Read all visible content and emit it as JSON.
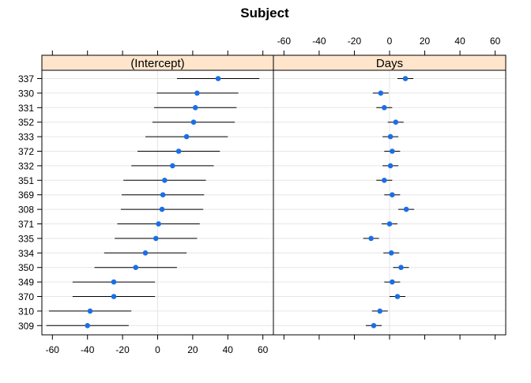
{
  "chart_data": {
    "type": "scatter",
    "title": "Subject",
    "subtitle": "",
    "xlabel": "",
    "ylabel": "",
    "categories": [
      "337",
      "330",
      "331",
      "352",
      "333",
      "372",
      "332",
      "351",
      "369",
      "308",
      "371",
      "335",
      "334",
      "350",
      "349",
      "370",
      "310",
      "309"
    ],
    "xlim": [
      -66,
      66
    ],
    "xticks": [
      -60,
      -40,
      -20,
      0,
      20,
      40,
      60
    ],
    "tick_labels": [
      "-60",
      "-40",
      "-20",
      "0",
      "20",
      "40",
      "60"
    ],
    "grid": true,
    "colors": {
      "point": "#1a6fe6",
      "strip": "#ffe5cc",
      "interval": "#000000",
      "grid": "#e6e6e6"
    },
    "panels": [
      {
        "strip_label": "(Intercept)",
        "points": [
          {
            "category": "337",
            "value": 34.5,
            "lower": 11.0,
            "upper": 58.0
          },
          {
            "category": "330",
            "value": 22.5,
            "lower": -0.5,
            "upper": 46.0
          },
          {
            "category": "331",
            "value": 21.5,
            "lower": -2.0,
            "upper": 45.0
          },
          {
            "category": "352",
            "value": 20.5,
            "lower": -3.0,
            "upper": 44.0
          },
          {
            "category": "333",
            "value": 16.5,
            "lower": -7.0,
            "upper": 40.0
          },
          {
            "category": "372",
            "value": 12.0,
            "lower": -11.5,
            "upper": 35.5
          },
          {
            "category": "332",
            "value": 8.5,
            "lower": -15.0,
            "upper": 32.0
          },
          {
            "category": "351",
            "value": 4.0,
            "lower": -19.5,
            "upper": 27.5
          },
          {
            "category": "369",
            "value": 3.0,
            "lower": -20.5,
            "upper": 26.5
          },
          {
            "category": "308",
            "value": 2.5,
            "lower": -21.0,
            "upper": 26.0
          },
          {
            "category": "371",
            "value": 0.5,
            "lower": -23.0,
            "upper": 24.0
          },
          {
            "category": "335",
            "value": -1.0,
            "lower": -24.5,
            "upper": 22.5
          },
          {
            "category": "334",
            "value": -7.0,
            "lower": -30.5,
            "upper": 16.5
          },
          {
            "category": "350",
            "value": -12.5,
            "lower": -36.0,
            "upper": 11.0
          },
          {
            "category": "349",
            "value": -25.0,
            "lower": -48.5,
            "upper": -1.5
          },
          {
            "category": "370",
            "value": -25.0,
            "lower": -48.5,
            "upper": -1.5
          },
          {
            "category": "310",
            "value": -38.5,
            "lower": -62.0,
            "upper": -15.0
          },
          {
            "category": "309",
            "value": -40.0,
            "lower": -63.5,
            "upper": -16.5
          }
        ]
      },
      {
        "strip_label": "Days",
        "points": [
          {
            "category": "337",
            "value": 9.0,
            "lower": 4.5,
            "upper": 13.5
          },
          {
            "category": "330",
            "value": -5.0,
            "lower": -9.5,
            "upper": -0.5
          },
          {
            "category": "331",
            "value": -3.0,
            "lower": -7.5,
            "upper": 1.5
          },
          {
            "category": "352",
            "value": 3.5,
            "lower": -1.0,
            "upper": 8.0
          },
          {
            "category": "333",
            "value": 0.5,
            "lower": -4.0,
            "upper": 5.0
          },
          {
            "category": "372",
            "value": 1.5,
            "lower": -3.0,
            "upper": 6.0
          },
          {
            "category": "332",
            "value": 0.5,
            "lower": -4.0,
            "upper": 5.0
          },
          {
            "category": "351",
            "value": -3.0,
            "lower": -7.5,
            "upper": 1.5
          },
          {
            "category": "369",
            "value": 1.5,
            "lower": -3.0,
            "upper": 6.0
          },
          {
            "category": "308",
            "value": 9.5,
            "lower": 5.0,
            "upper": 14.0
          },
          {
            "category": "371",
            "value": 0.0,
            "lower": -4.5,
            "upper": 4.5
          },
          {
            "category": "335",
            "value": -10.5,
            "lower": -15.0,
            "upper": -6.0
          },
          {
            "category": "334",
            "value": 1.0,
            "lower": -3.5,
            "upper": 5.5
          },
          {
            "category": "350",
            "value": 6.5,
            "lower": 2.0,
            "upper": 11.0
          },
          {
            "category": "349",
            "value": 1.5,
            "lower": -3.0,
            "upper": 6.0
          },
          {
            "category": "370",
            "value": 4.5,
            "lower": 0.0,
            "upper": 9.0
          },
          {
            "category": "310",
            "value": -5.5,
            "lower": -10.0,
            "upper": -1.0
          },
          {
            "category": "309",
            "value": -9.0,
            "lower": -13.5,
            "upper": -4.5
          }
        ]
      }
    ]
  }
}
